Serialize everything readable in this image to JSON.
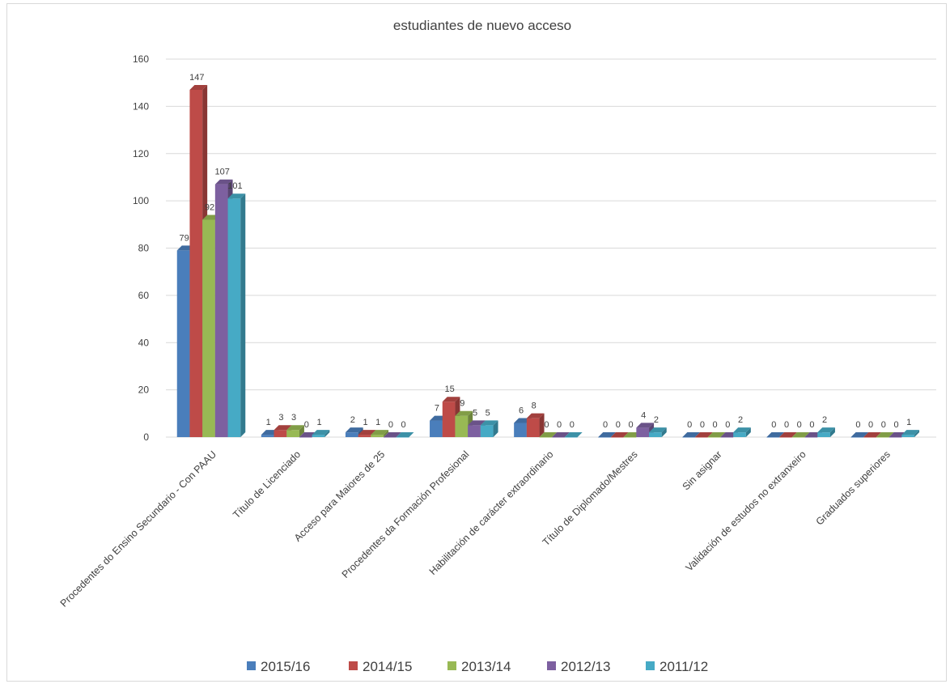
{
  "chart_data": {
    "type": "bar",
    "title": "estudiantes de nuevo acceso",
    "xlabel": "",
    "ylabel": "",
    "ylim": [
      0,
      160
    ],
    "yticks": [
      0,
      20,
      40,
      60,
      80,
      100,
      120,
      140,
      160
    ],
    "grid": true,
    "legend_position": "bottom",
    "categories": [
      "Procedentes do Ensino Secundario - Con PAAU",
      "Título de Licenciado",
      "Acceso para Maiores de 25",
      "Procedentes da Formación Profesional",
      "Habilitación de carácter extraordinario",
      "Título de Diplomado/Mestres",
      "Sin asignar",
      "Validación de estudos no extranxeiro",
      "Graduados superiores"
    ],
    "series": [
      {
        "name": "2015/16",
        "color": "#4a7ebb",
        "values": [
          79,
          1,
          2,
          7,
          6,
          0,
          0,
          0,
          0
        ]
      },
      {
        "name": "2014/15",
        "color": "#be4b48",
        "values": [
          147,
          3,
          1,
          15,
          8,
          0,
          0,
          0,
          0
        ]
      },
      {
        "name": "2013/14",
        "color": "#98b954",
        "values": [
          92,
          3,
          1,
          9,
          0,
          0,
          0,
          0,
          0
        ]
      },
      {
        "name": "2012/13",
        "color": "#7d60a0",
        "values": [
          107,
          0,
          0,
          5,
          0,
          4,
          0,
          0,
          0
        ]
      },
      {
        "name": "2011/12",
        "color": "#46aac5",
        "values": [
          101,
          1,
          0,
          5,
          0,
          2,
          2,
          2,
          1
        ]
      }
    ],
    "data_labels": [
      [
        "79",
        "1",
        "2",
        "7",
        "6",
        "0",
        "0",
        "0",
        "0"
      ],
      [
        "147",
        "3",
        "1",
        "15",
        "8",
        "0",
        "0",
        "0",
        "0"
      ],
      [
        "92",
        "3",
        "1",
        "9",
        "0",
        "0",
        "0",
        "0",
        "0"
      ],
      [
        "107",
        "0",
        "0",
        "5",
        "0",
        "4",
        "0",
        "0",
        "0"
      ],
      [
        "101",
        "1",
        "0",
        "5",
        "0",
        "2",
        "2",
        "2",
        "1"
      ]
    ]
  }
}
